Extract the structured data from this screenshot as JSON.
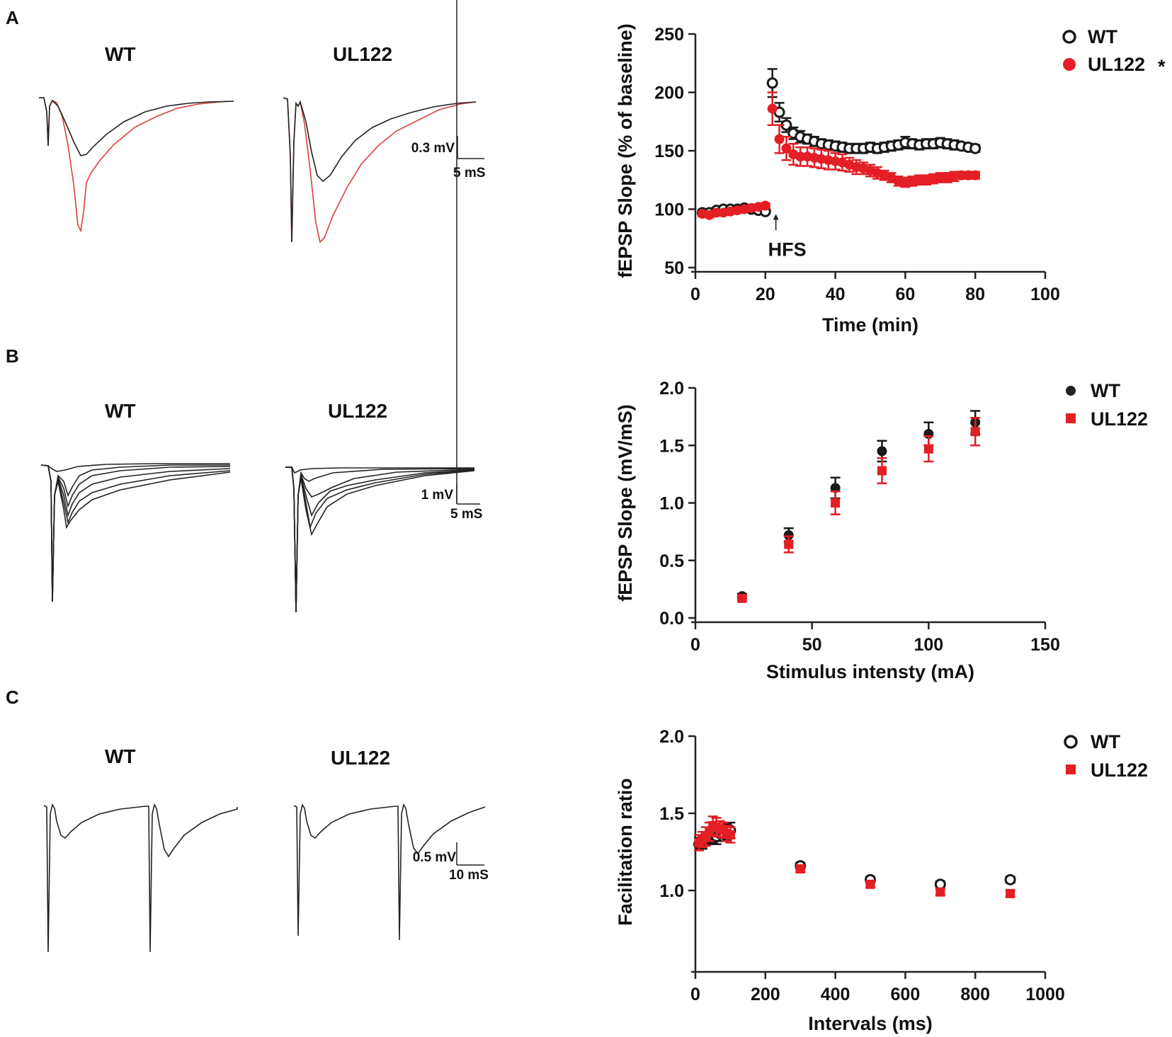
{
  "colors": {
    "wt": "#1a1a1a",
    "ul122": "#e31e24",
    "trace_black": "#222222",
    "trace_red": "#d94040"
  },
  "panels": {
    "A": {
      "label": "A",
      "trace_titles": [
        "WT",
        "UL122"
      ],
      "scale_bar": {
        "vertical": "0.3 mV",
        "horizontal": "5 mS"
      }
    },
    "B": {
      "label": "B",
      "trace_titles": [
        "WT",
        "UL122"
      ],
      "scale_bar": {
        "vertical": "1 mV",
        "horizontal": "5 mS"
      }
    },
    "C": {
      "label": "C",
      "trace_titles": [
        "WT",
        "UL122"
      ],
      "scale_bar": {
        "vertical": "0.5 mV",
        "horizontal": "10 mS"
      }
    }
  },
  "chart_data": [
    {
      "id": "ltp",
      "type": "scatter",
      "title": "",
      "xlabel": "Time (min)",
      "ylabel": "fEPSP Slope (% of baseline)",
      "xlim": [
        0,
        100
      ],
      "ylim": [
        50,
        250
      ],
      "xticks": [
        0,
        20,
        40,
        60,
        80,
        100
      ],
      "yticks": [
        50,
        100,
        150,
        200,
        250
      ],
      "annotation": {
        "text": "HFS",
        "x": 23
      },
      "legend": {
        "position": "top-right",
        "significance_marker": "*"
      },
      "series": [
        {
          "name": "WT",
          "marker": "open-circle",
          "x": [
            2,
            4,
            6,
            8,
            10,
            12,
            14,
            16,
            18,
            20,
            22,
            24,
            26,
            28,
            30,
            32,
            34,
            36,
            38,
            40,
            42,
            44,
            46,
            48,
            50,
            52,
            54,
            56,
            58,
            60,
            62,
            64,
            66,
            68,
            70,
            72,
            74,
            76,
            78,
            80
          ],
          "y": [
            97,
            97,
            99,
            100,
            100,
            100,
            101,
            100,
            99,
            98,
            208,
            183,
            172,
            165,
            162,
            160,
            158,
            156,
            155,
            154,
            153,
            152,
            152,
            152,
            153,
            152,
            153,
            154,
            155,
            157,
            156,
            155,
            156,
            156,
            157,
            156,
            155,
            154,
            153,
            152
          ],
          "err": [
            2,
            2,
            2,
            2,
            2,
            2,
            2,
            2,
            2,
            2,
            12,
            8,
            6,
            5,
            5,
            4,
            4,
            4,
            4,
            4,
            4,
            4,
            4,
            4,
            4,
            4,
            4,
            4,
            4,
            5,
            4,
            4,
            4,
            4,
            4,
            4,
            4,
            3,
            3,
            3
          ]
        },
        {
          "name": "UL122",
          "marker": "filled-circle",
          "x": [
            2,
            4,
            6,
            8,
            10,
            12,
            14,
            16,
            18,
            20,
            22,
            24,
            26,
            28,
            30,
            32,
            34,
            36,
            38,
            40,
            42,
            44,
            46,
            48,
            50,
            52,
            54,
            56,
            58,
            60,
            62,
            64,
            66,
            68,
            70,
            72,
            74,
            76,
            78,
            80
          ],
          "y": [
            96,
            95,
            97,
            97,
            98,
            99,
            100,
            101,
            102,
            103,
            186,
            160,
            152,
            147,
            145,
            145,
            144,
            143,
            142,
            141,
            140,
            138,
            136,
            135,
            133,
            131,
            129,
            127,
            124,
            123,
            124,
            125,
            125,
            126,
            127,
            127,
            128,
            129,
            129,
            129
          ],
          "err": [
            2,
            2,
            2,
            2,
            2,
            2,
            2,
            2,
            2,
            2,
            14,
            12,
            10,
            9,
            8,
            8,
            8,
            8,
            8,
            7,
            7,
            6,
            6,
            5,
            5,
            5,
            4,
            4,
            4,
            4,
            4,
            4,
            4,
            4,
            4,
            4,
            4,
            3,
            3,
            3
          ]
        }
      ]
    },
    {
      "id": "io",
      "type": "scatter",
      "title": "",
      "xlabel": "Stimulus intensty (mA)",
      "ylabel": "fEPSP Slope (mV/mS)",
      "xlim": [
        0,
        150
      ],
      "ylim": [
        0.0,
        2.0
      ],
      "xticks": [
        0,
        50,
        100,
        150
      ],
      "yticks": [
        0.0,
        0.5,
        1.0,
        1.5,
        2.0
      ],
      "yticklabels": [
        "0.0",
        "0.5",
        "1.0",
        "1.5",
        "2.0"
      ],
      "legend": {
        "position": "top-right"
      },
      "series": [
        {
          "name": "WT",
          "marker": "filled-circle",
          "x": [
            20,
            40,
            60,
            80,
            100,
            120
          ],
          "y": [
            0.19,
            0.72,
            1.13,
            1.45,
            1.6,
            1.7
          ],
          "err": [
            0.02,
            0.06,
            0.09,
            0.09,
            0.1,
            0.1
          ]
        },
        {
          "name": "UL122",
          "marker": "filled-square",
          "x": [
            20,
            40,
            60,
            80,
            100,
            120
          ],
          "y": [
            0.17,
            0.64,
            1.0,
            1.28,
            1.47,
            1.62
          ],
          "err": [
            0.02,
            0.07,
            0.1,
            0.11,
            0.11,
            0.12
          ]
        }
      ]
    },
    {
      "id": "ppf",
      "type": "scatter",
      "title": "",
      "xlabel": "Intervals (ms)",
      "ylabel": "Facilitation ratio",
      "xlim": [
        0,
        1000
      ],
      "ylim": [
        0.5,
        2.0
      ],
      "xticks": [
        0,
        200,
        400,
        600,
        800,
        1000
      ],
      "yticks": [
        1.0,
        1.5,
        2.0
      ],
      "yticklabels": [
        "1.0",
        "1.5",
        "2.0"
      ],
      "legend": {
        "position": "top-right"
      },
      "series": [
        {
          "name": "WT",
          "marker": "open-circle",
          "x": [
            10,
            20,
            30,
            40,
            50,
            60,
            70,
            80,
            90,
            100,
            300,
            500,
            700,
            900
          ],
          "y": [
            1.3,
            1.31,
            1.33,
            1.34,
            1.36,
            1.35,
            1.37,
            1.37,
            1.38,
            1.39,
            1.16,
            1.07,
            1.04,
            1.07
          ],
          "err": [
            0.04,
            0.04,
            0.04,
            0.04,
            0.05,
            0.05,
            0.05,
            0.05,
            0.05,
            0.05,
            0.02,
            0.02,
            0.02,
            0.02
          ]
        },
        {
          "name": "UL122",
          "marker": "filled-square",
          "x": [
            10,
            20,
            30,
            40,
            50,
            60,
            70,
            80,
            90,
            100,
            300,
            500,
            700,
            900
          ],
          "y": [
            1.31,
            1.33,
            1.35,
            1.38,
            1.42,
            1.41,
            1.4,
            1.39,
            1.37,
            1.36,
            1.14,
            1.04,
            0.99,
            0.98
          ],
          "err": [
            0.05,
            0.05,
            0.06,
            0.06,
            0.06,
            0.06,
            0.05,
            0.05,
            0.05,
            0.05,
            0.02,
            0.02,
            0.02,
            0.02
          ]
        }
      ]
    }
  ]
}
